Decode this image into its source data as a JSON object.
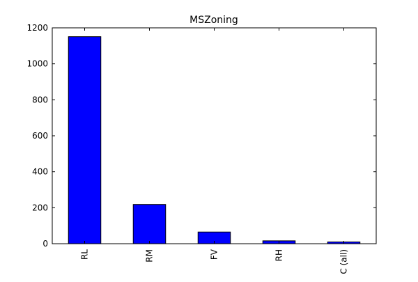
{
  "chart_data": {
    "type": "bar",
    "title": "MSZoning",
    "xlabel": "",
    "ylabel": "",
    "categories": [
      "RL",
      "RM",
      "FV",
      "RH",
      "C (all)"
    ],
    "values": [
      1151,
      218,
      65,
      16,
      10
    ],
    "ylim": [
      0,
      1200
    ],
    "yticks": [
      0,
      200,
      400,
      600,
      800,
      1000,
      1200
    ],
    "grid": false,
    "legend": "none",
    "bar_color": "#0000ff",
    "edge_color": "#000000"
  }
}
